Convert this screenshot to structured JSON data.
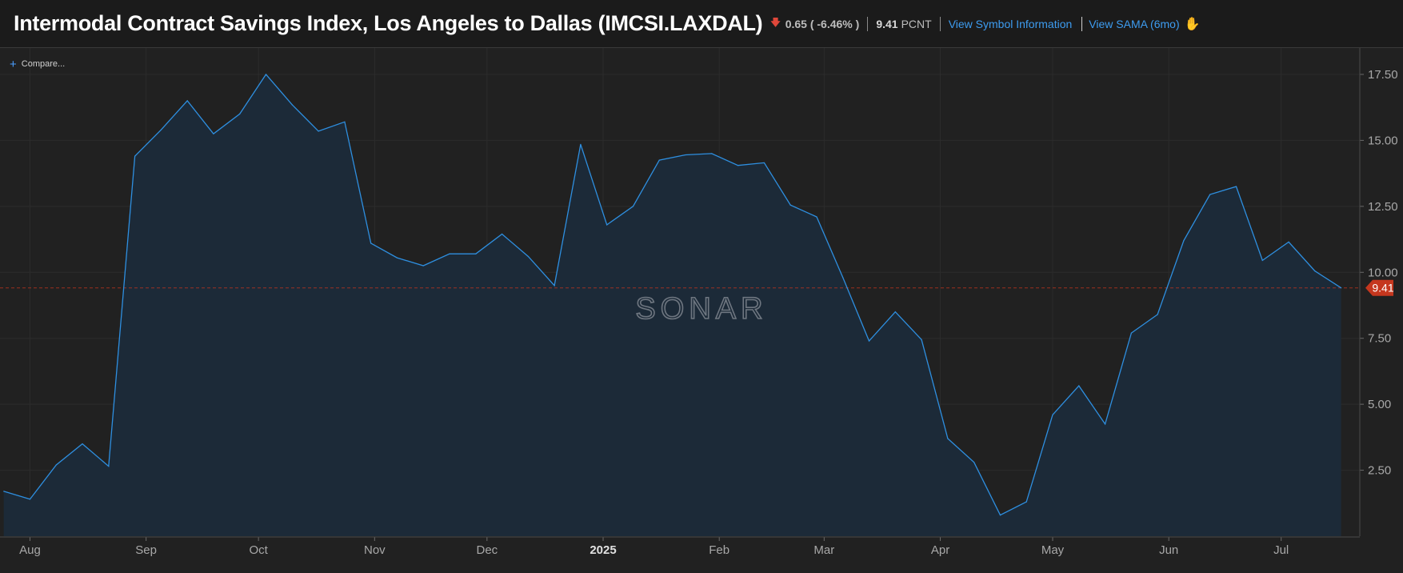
{
  "header": {
    "title": "Intermodal Contract Savings Index, Los Angeles to Dallas (IMCSI.LAXDAL)",
    "change": "0.65 ( -6.46% )",
    "value": "9.41",
    "unit": "PCNT",
    "link_symbol": "View Symbol Information",
    "link_sama": "View SAMA (6mo)",
    "arrow_icon": "arrow-down-icon",
    "sama_icon": "chart-hand-icon"
  },
  "compare": {
    "label": "Compare..."
  },
  "watermark": "SONAR",
  "colors": {
    "line": "#2e8fe0",
    "area": "#1c2a38",
    "last_value_bg": "#c5371e",
    "down": "#e0473a",
    "link": "#3d9cf0"
  },
  "chart_data": {
    "type": "area",
    "title": "Intermodal Contract Savings Index, Los Angeles to Dallas (IMCSI.LAXDAL)",
    "unit": "PCNT",
    "ylim": [
      0,
      18.5
    ],
    "yticks": [
      2.5,
      5,
      7.5,
      10,
      12.5,
      15,
      17.5
    ],
    "ytick_labels": [
      "2.50",
      "5.00",
      "7.50",
      "10.00",
      "12.50",
      "15.00",
      "17.50"
    ],
    "grid": true,
    "xlim": [
      "2024-07-24",
      "2025-07-19"
    ],
    "x_ticks": [
      {
        "date": "2024-08-01",
        "label": "Aug",
        "bold": false
      },
      {
        "date": "2024-09-01",
        "label": "Sep",
        "bold": false
      },
      {
        "date": "2024-10-01",
        "label": "Oct",
        "bold": false
      },
      {
        "date": "2024-11-01",
        "label": "Nov",
        "bold": false
      },
      {
        "date": "2024-12-01",
        "label": "Dec",
        "bold": false
      },
      {
        "date": "2025-01-01",
        "label": "2025",
        "bold": true
      },
      {
        "date": "2025-02-01",
        "label": "Feb",
        "bold": false
      },
      {
        "date": "2025-03-01",
        "label": "Mar",
        "bold": false
      },
      {
        "date": "2025-04-01",
        "label": "Apr",
        "bold": false
      },
      {
        "date": "2025-05-01",
        "label": "May",
        "bold": false
      },
      {
        "date": "2025-06-01",
        "label": "Jun",
        "bold": false
      },
      {
        "date": "2025-07-01",
        "label": "Jul",
        "bold": false
      }
    ],
    "last_value": 9.41,
    "last_value_label": "9.41",
    "series": [
      {
        "points": [
          [
            "2024-07-25",
            1.7
          ],
          [
            "2024-08-01",
            1.4
          ],
          [
            "2024-08-08",
            2.7
          ],
          [
            "2024-08-15",
            3.5
          ],
          [
            "2024-08-22",
            2.65
          ],
          [
            "2024-08-29",
            14.4
          ],
          [
            "2024-09-05",
            15.4
          ],
          [
            "2024-09-12",
            16.5
          ],
          [
            "2024-09-19",
            15.25
          ],
          [
            "2024-09-26",
            16.0
          ],
          [
            "2024-10-03",
            17.5
          ],
          [
            "2024-10-10",
            16.35
          ],
          [
            "2024-10-17",
            15.35
          ],
          [
            "2024-10-24",
            15.7
          ],
          [
            "2024-10-31",
            11.1
          ],
          [
            "2024-11-07",
            10.55
          ],
          [
            "2024-11-14",
            10.25
          ],
          [
            "2024-11-21",
            10.7
          ],
          [
            "2024-11-28",
            10.7
          ],
          [
            "2024-12-05",
            11.45
          ],
          [
            "2024-12-12",
            10.6
          ],
          [
            "2024-12-19",
            9.5
          ],
          [
            "2024-12-26",
            14.85
          ],
          [
            "2025-01-02",
            11.8
          ],
          [
            "2025-01-09",
            12.5
          ],
          [
            "2025-01-16",
            14.25
          ],
          [
            "2025-01-23",
            14.45
          ],
          [
            "2025-01-30",
            14.5
          ],
          [
            "2025-02-06",
            14.05
          ],
          [
            "2025-02-13",
            14.15
          ],
          [
            "2025-02-20",
            12.55
          ],
          [
            "2025-02-27",
            12.1
          ],
          [
            "2025-03-06",
            9.8
          ],
          [
            "2025-03-13",
            7.4
          ],
          [
            "2025-03-20",
            8.5
          ],
          [
            "2025-03-27",
            7.45
          ],
          [
            "2025-04-03",
            3.7
          ],
          [
            "2025-04-10",
            2.8
          ],
          [
            "2025-04-17",
            0.8
          ],
          [
            "2025-04-24",
            1.3
          ],
          [
            "2025-05-01",
            4.6
          ],
          [
            "2025-05-08",
            5.7
          ],
          [
            "2025-05-15",
            4.25
          ],
          [
            "2025-05-22",
            7.7
          ],
          [
            "2025-05-29",
            8.4
          ],
          [
            "2025-06-05",
            11.2
          ],
          [
            "2025-06-12",
            12.95
          ],
          [
            "2025-06-19",
            13.25
          ],
          [
            "2025-06-26",
            10.45
          ],
          [
            "2025-07-03",
            11.15
          ],
          [
            "2025-07-10",
            10.05
          ],
          [
            "2025-07-17",
            9.41
          ]
        ]
      }
    ]
  }
}
